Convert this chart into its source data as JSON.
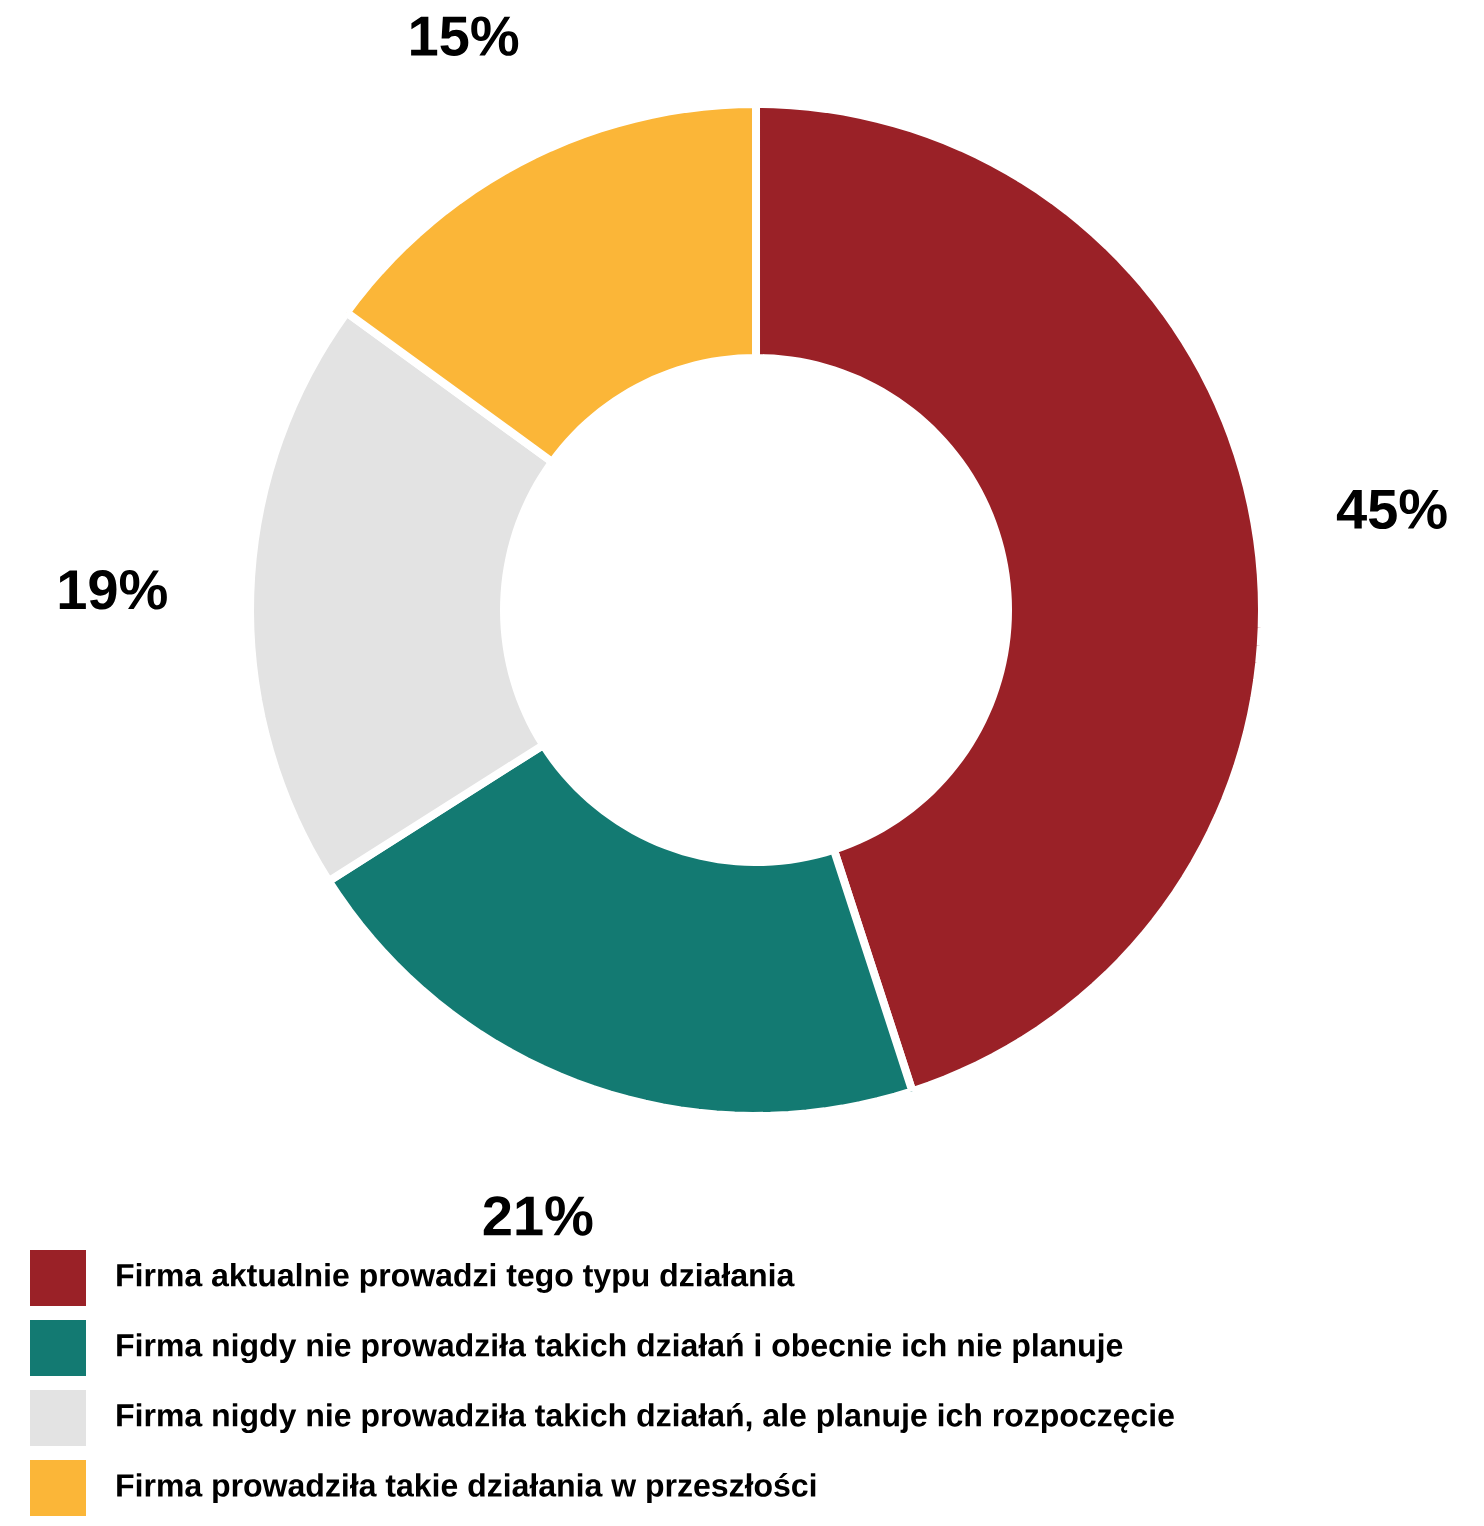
{
  "chart_data": {
    "type": "donut",
    "categories": [
      "Firma aktualnie prowadzi tego typu działania",
      "Firma nigdy nie prowadziła takich działań i obecnie ich nie planuje",
      "Firma nigdy nie prowadziła takich działań, ale planuje ich rozpoczęcie",
      "Firma prowadziła takie działania w przeszłości"
    ],
    "values": [
      45,
      21,
      19,
      15
    ],
    "value_labels": [
      "45%",
      "21%",
      "19%",
      "15%"
    ],
    "colors": [
      "#9a2127",
      "#137a72",
      "#e3e3e3",
      "#fbb638"
    ],
    "legend": "bottom"
  }
}
